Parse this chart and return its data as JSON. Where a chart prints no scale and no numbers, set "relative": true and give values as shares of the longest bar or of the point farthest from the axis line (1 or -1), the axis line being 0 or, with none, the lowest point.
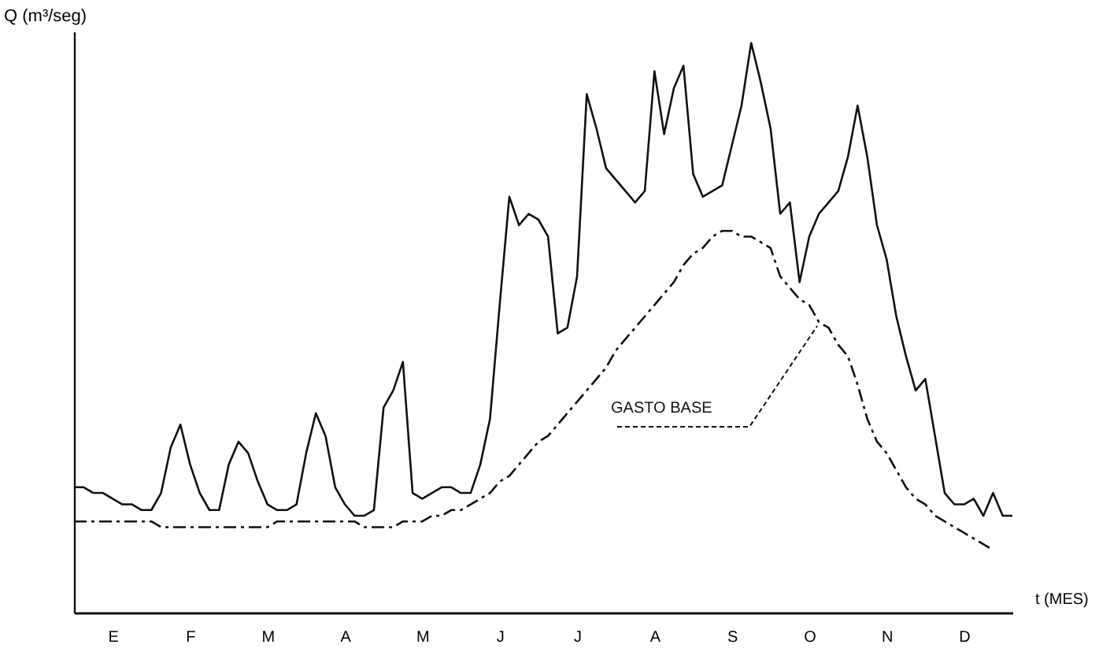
{
  "chart_data": {
    "type": "line",
    "relative": true,
    "ylabel": "Q (m³/seg)",
    "xlabel": "t (MES)",
    "categories": [
      null,
      null,
      null,
      null,
      "E",
      null,
      null,
      null,
      null,
      null,
      null,
      null,
      "F",
      null,
      null,
      null,
      null,
      null,
      null,
      null,
      "M",
      null,
      null,
      null,
      null,
      null,
      null,
      null,
      "A",
      null,
      null,
      null,
      null,
      null,
      null,
      null,
      "M",
      null,
      null,
      null,
      null,
      null,
      null,
      null,
      "J",
      null,
      null,
      null,
      null,
      null,
      null,
      null,
      "J",
      null,
      null,
      null,
      null,
      null,
      null,
      null,
      "A",
      null,
      null,
      null,
      null,
      null,
      null,
      null,
      "S",
      null,
      null,
      null,
      null,
      null,
      null,
      null,
      "O",
      null,
      null,
      null,
      null,
      null,
      null,
      null,
      "N",
      null,
      null,
      null,
      null,
      null,
      null,
      null,
      "D",
      null,
      null,
      null,
      null,
      null
    ],
    "marker": "none",
    "annotations": [
      "GASTO BASE"
    ],
    "series": [
      {
        "color": "#111111",
        "line_style": "solid",
        "values": [
          0.22,
          0.22,
          0.21,
          0.21,
          0.2,
          0.19,
          0.19,
          0.18,
          0.18,
          0.21,
          0.29,
          0.33,
          0.26,
          0.21,
          0.18,
          0.18,
          0.26,
          0.3,
          0.28,
          0.23,
          0.19,
          0.18,
          0.18,
          0.19,
          0.28,
          0.35,
          0.31,
          0.22,
          0.19,
          0.17,
          0.17,
          0.18,
          0.36,
          0.39,
          0.44,
          0.21,
          0.2,
          0.21,
          0.22,
          0.22,
          0.21,
          0.21,
          0.26,
          0.34,
          0.54,
          0.73,
          0.68,
          0.7,
          0.69,
          0.66,
          0.49,
          0.5,
          0.59,
          0.91,
          0.85,
          0.78,
          0.76,
          0.74,
          0.72,
          0.74,
          0.95,
          0.84,
          0.92,
          0.96,
          0.77,
          0.73,
          0.74,
          0.75,
          0.82,
          0.89,
          1,
          0.93,
          0.85,
          0.7,
          0.72,
          0.58,
          0.66,
          0.7,
          0.72,
          0.74,
          0.8,
          0.89,
          0.8,
          0.68,
          0.62,
          0.52,
          0.45,
          0.39,
          0.41,
          0.31,
          0.21,
          0.19,
          0.19,
          0.2,
          0.17,
          0.21,
          0.17,
          0.17
        ]
      },
      {
        "color": "#111111",
        "line_style": "dashed",
        "values": [
          0.16,
          0.16,
          0.16,
          0.16,
          0.16,
          0.16,
          0.16,
          0.16,
          0.16,
          0.15,
          0.15,
          0.15,
          0.15,
          0.15,
          0.15,
          0.15,
          0.15,
          0.15,
          0.15,
          0.15,
          0.15,
          0.16,
          0.16,
          0.16,
          0.16,
          0.16,
          0.16,
          0.16,
          0.16,
          0.16,
          0.15,
          0.15,
          0.15,
          0.15,
          0.16,
          0.16,
          0.16,
          0.17,
          0.17,
          0.18,
          0.18,
          0.19,
          0.2,
          0.21,
          0.23,
          0.24,
          0.26,
          0.28,
          0.3,
          0.31,
          0.33,
          0.35,
          0.37,
          0.39,
          0.41,
          0.43,
          0.46,
          0.48,
          0.5,
          0.52,
          0.54,
          0.56,
          0.58,
          0.61,
          0.63,
          0.64,
          0.66,
          0.67,
          0.67,
          0.66,
          0.66,
          0.65,
          0.64,
          0.59,
          0.57,
          0.55,
          0.54,
          0.51,
          0.5,
          0.47,
          0.45,
          0.4,
          0.34,
          0.3,
          0.28,
          0.25,
          0.22,
          0.2,
          0.19,
          0.17,
          0.16,
          0.15,
          0.14,
          0.13,
          0.12,
          0.11,
          null,
          null
        ]
      }
    ]
  }
}
